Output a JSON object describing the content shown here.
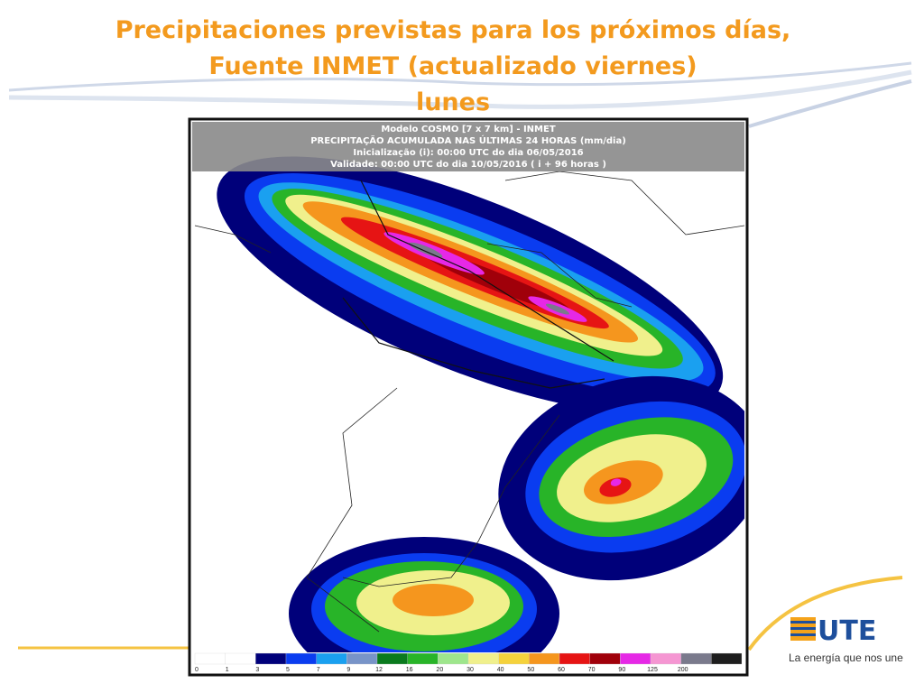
{
  "slide": {
    "title_lines": [
      "Precipitaciones previstas para los próximos días,",
      "Fuente INMET (actualizado viernes)",
      "lunes"
    ],
    "map": {
      "header": [
        "Modelo COSMO [7 x 7 km] - INMET",
        "PRECIPITAÇÃO ACUMULADA NAS ÚLTIMAS 24 HORAS (mm/dia)",
        "Inicialização (i): 00:00 UTC do dia 06/05/2016",
        "Validade: 00:00 UTC do dia 10/05/2016 ( i + 96 horas )"
      ],
      "legend": {
        "ticks": [
          0,
          1,
          3,
          5,
          7,
          9,
          12,
          16,
          20,
          30,
          40,
          50,
          60,
          70,
          90,
          125,
          200
        ],
        "colors": [
          "#ffffff",
          "#ffffff",
          "#00007a",
          "#0a3cf0",
          "#1aa0f0",
          "#7894c8",
          "#0a7a1e",
          "#28b428",
          "#9ee68c",
          "#f0f08c",
          "#f5d23c",
          "#f5961e",
          "#e61414",
          "#a0000a",
          "#e628e6",
          "#f596d2",
          "#7a7a8c",
          "#1e1e1e"
        ]
      }
    },
    "logo": {
      "name": "UTE",
      "tagline": "La energía que nos une"
    }
  }
}
